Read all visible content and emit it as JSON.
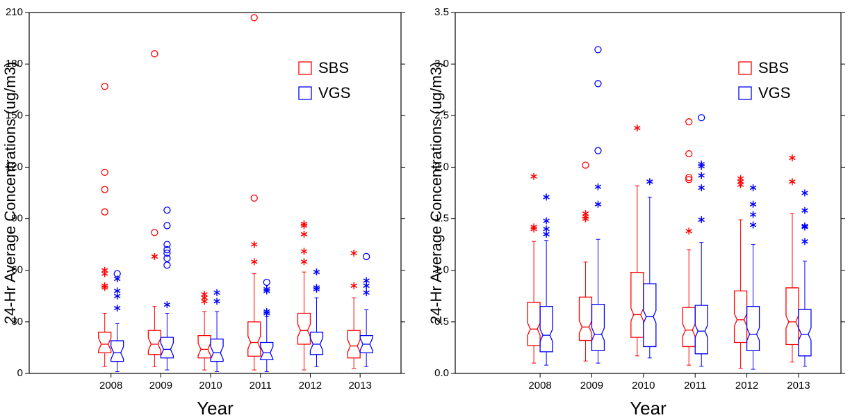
{
  "chart_data": [
    {
      "type": "box",
      "y_label": "24-Hr Average Concentrations (ug/m3)",
      "x_label": "Year",
      "categories": [
        "2008",
        "2009",
        "2010",
        "2011",
        "2012",
        "2013"
      ],
      "ylim": [
        0,
        210
      ],
      "yticks": [
        0,
        30,
        60,
        90,
        120,
        150,
        180,
        210
      ],
      "legend": "upper right",
      "series": [
        {
          "name": "SBS",
          "color": "#ff0000",
          "boxes": [
            {
              "whisker_low": 4,
              "q1": 12,
              "median": 17,
              "q3": 24,
              "whisker_high": 35,
              "outside": [
                50,
                51,
                58,
                60
              ],
              "far_outside": [
                94,
                107,
                117,
                167
              ]
            },
            {
              "whisker_low": 4,
              "q1": 11,
              "median": 17,
              "q3": 25,
              "whisker_high": 39,
              "outside": [
                68
              ],
              "far_outside": [
                82,
                186
              ]
            },
            {
              "whisker_low": 2,
              "q1": 9,
              "median": 14,
              "q3": 22,
              "whisker_high": 36,
              "outside": [
                42,
                44,
                46
              ],
              "far_outside": []
            },
            {
              "whisker_low": 2,
              "q1": 10,
              "median": 18,
              "q3": 30,
              "whisker_high": 58,
              "outside": [
                65,
                75
              ],
              "far_outside": [
                102,
                207
              ]
            },
            {
              "whisker_low": 2,
              "q1": 17,
              "median": 25,
              "q3": 35,
              "whisker_high": 59,
              "outside": [
                65,
                71,
                81,
                86,
                87
              ],
              "far_outside": []
            },
            {
              "whisker_low": 3,
              "q1": 9,
              "median": 16,
              "q3": 25,
              "whisker_high": 44,
              "outside": [
                51,
                70
              ],
              "far_outside": []
            }
          ]
        },
        {
          "name": "VGS",
          "color": "#0000ff",
          "boxes": [
            {
              "whisker_low": 1,
              "q1": 7,
              "median": 12,
              "q3": 19,
              "whisker_high": 29,
              "outside": [
                38,
                45,
                48,
                55
              ],
              "far_outside": [
                58
              ]
            },
            {
              "whisker_low": 2,
              "q1": 9,
              "median": 14,
              "q3": 21,
              "whisker_high": 35,
              "outside": [
                40
              ],
              "far_outside": [
                63,
                67,
                70,
                72,
                75,
                86,
                95
              ]
            },
            {
              "whisker_low": 1,
              "q1": 7,
              "median": 12,
              "q3": 20,
              "whisker_high": 36,
              "outside": [
                42,
                47
              ],
              "far_outside": []
            },
            {
              "whisker_low": 1,
              "q1": 8,
              "median": 12,
              "q3": 18,
              "whisker_high": 33,
              "outside": [
                35,
                36,
                48,
                49
              ],
              "far_outside": [
                53
              ]
            },
            {
              "whisker_low": 4,
              "q1": 11,
              "median": 17,
              "q3": 24,
              "whisker_high": 44,
              "outside": [
                49,
                50,
                59
              ],
              "far_outside": []
            },
            {
              "whisker_low": 4,
              "q1": 12,
              "median": 17,
              "q3": 22,
              "whisker_high": 37,
              "outside": [
                47,
                51,
                54
              ],
              "far_outside": [
                68
              ]
            }
          ]
        }
      ]
    },
    {
      "type": "box",
      "y_label": "24-Hr Average Concentrations (ug/m3)",
      "x_label": "Year",
      "categories": [
        "2008",
        "2009",
        "2010",
        "2011",
        "2012",
        "2013"
      ],
      "ylim": [
        0,
        3.5
      ],
      "yticks": [
        {
          "value": 0,
          "label": "0.0"
        },
        0.5,
        {
          "value": 1,
          "label": "1.0"
        },
        1.5,
        {
          "value": 2,
          "label": "2.0"
        },
        2.5,
        {
          "value": 3,
          "label": "3.0"
        },
        3.5
      ],
      "legend": "upper right",
      "series": [
        {
          "name": "SBS",
          "color": "#ff0000",
          "boxes": [
            {
              "whisker_low": 0.1,
              "q1": 0.27,
              "median": 0.43,
              "q3": 0.69,
              "whisker_high": 1.28,
              "outside": [
                1.4,
                1.42,
                1.91
              ],
              "far_outside": []
            },
            {
              "whisker_low": 0.12,
              "q1": 0.32,
              "median": 0.45,
              "q3": 0.74,
              "whisker_high": 1.08,
              "outside": [
                1.5,
                1.52,
                1.55
              ],
              "far_outside": [
                2.02
              ]
            },
            {
              "whisker_low": 0.17,
              "q1": 0.35,
              "median": 0.57,
              "q3": 0.98,
              "whisker_high": 1.82,
              "outside": [
                2.38
              ],
              "far_outside": []
            },
            {
              "whisker_low": 0.08,
              "q1": 0.26,
              "median": 0.42,
              "q3": 0.64,
              "whisker_high": 1.2,
              "outside": [
                1.38
              ],
              "far_outside": [
                1.88,
                1.9,
                2.13,
                2.44
              ]
            },
            {
              "whisker_low": 0.05,
              "q1": 0.3,
              "median": 0.52,
              "q3": 0.8,
              "whisker_high": 1.49,
              "outside": [
                1.83,
                1.86,
                1.89
              ],
              "far_outside": []
            },
            {
              "whisker_low": 0.11,
              "q1": 0.28,
              "median": 0.5,
              "q3": 0.83,
              "whisker_high": 1.55,
              "outside": [
                1.86,
                2.09
              ],
              "far_outside": []
            }
          ]
        },
        {
          "name": "VGS",
          "color": "#0000ff",
          "boxes": [
            {
              "whisker_low": 0.08,
              "q1": 0.21,
              "median": 0.37,
              "q3": 0.65,
              "whisker_high": 1.29,
              "outside": [
                1.35,
                1.4,
                1.48,
                1.71
              ],
              "far_outside": []
            },
            {
              "whisker_low": 0.1,
              "q1": 0.22,
              "median": 0.38,
              "q3": 0.67,
              "whisker_high": 1.3,
              "outside": [
                1.64,
                1.81
              ],
              "far_outside": [
                2.16,
                2.81,
                3.14
              ]
            },
            {
              "whisker_low": 0.15,
              "q1": 0.26,
              "median": 0.55,
              "q3": 0.87,
              "whisker_high": 1.71,
              "outside": [
                1.86
              ],
              "far_outside": []
            },
            {
              "whisker_low": 0.07,
              "q1": 0.19,
              "median": 0.41,
              "q3": 0.66,
              "whisker_high": 1.27,
              "outside": [
                1.49,
                1.8,
                1.92,
                2.01,
                2.03
              ],
              "far_outside": [
                2.48
              ]
            },
            {
              "whisker_low": 0.04,
              "q1": 0.22,
              "median": 0.38,
              "q3": 0.65,
              "whisker_high": 1.25,
              "outside": [
                1.44,
                1.54,
                1.64,
                1.8
              ],
              "far_outside": []
            },
            {
              "whisker_low": 0.07,
              "q1": 0.17,
              "median": 0.38,
              "q3": 0.62,
              "whisker_high": 1.09,
              "outside": [
                1.28,
                1.42,
                1.43,
                1.58,
                1.75
              ],
              "far_outside": []
            }
          ]
        }
      ]
    }
  ]
}
